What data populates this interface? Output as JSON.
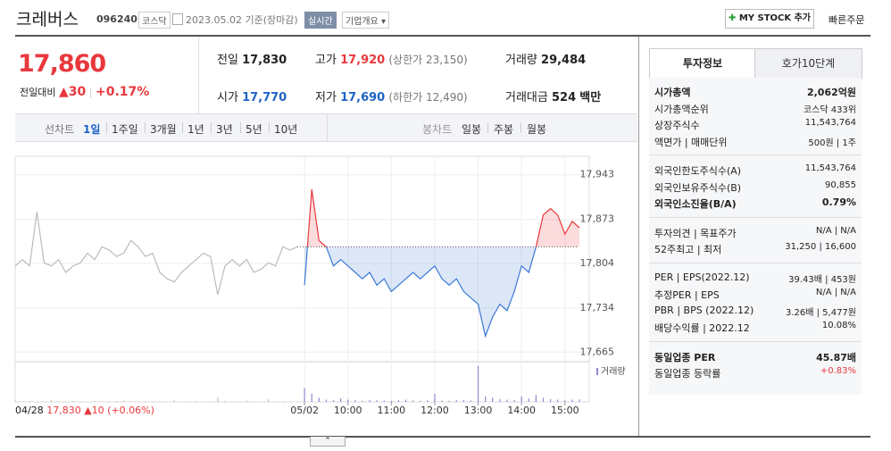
{
  "header": {
    "name": "크레버스",
    "code": "096240",
    "market": "코스닥",
    "date": "2023.05.02 기준(장마감)",
    "realtime": "실시간",
    "company_info": "기업개요",
    "mystock": "MY STOCK 추가",
    "quick_order": "빠른주문"
  },
  "price": {
    "current": "17,860",
    "change_label": "전일대비",
    "change": "30",
    "change_pct": "+0.17%"
  },
  "summary": {
    "prev_label": "전일",
    "prev": "17,830",
    "high_label": "고가",
    "high": "17,920",
    "upper_limit": "(상한가 23,150)",
    "volume_label": "거래량",
    "volume": "29,484",
    "open_label": "시가",
    "open": "17,770",
    "low_label": "저가",
    "low": "17,690",
    "lower_limit": "(하한가 12,490)",
    "amount_label": "거래대금",
    "amount": "524",
    "amount_unit": "백만"
  },
  "chart_tabs": {
    "line_label": "선차트",
    "line": [
      "1일",
      "1주일",
      "3개월",
      "1년",
      "3년",
      "5년",
      "10년"
    ],
    "candle_label": "봉차트",
    "candle": [
      "일봉",
      "주봉",
      "월봉"
    ]
  },
  "chart_data": {
    "type": "line",
    "baseline": 17830,
    "grid": true,
    "ylim": [
      17650,
      17958
    ],
    "yticks": [
      {
        "value": 17665,
        "label": "17,665"
      },
      {
        "value": 17734,
        "label": "17,734"
      },
      {
        "value": 17804,
        "label": "17,804"
      },
      {
        "value": 17873,
        "label": "17,873"
      },
      {
        "value": 17943,
        "label": "17,943"
      }
    ],
    "categories": [
      null,
      null,
      null,
      null,
      null,
      null,
      null,
      null,
      null,
      null,
      null,
      null,
      null,
      null,
      null,
      null,
      null,
      null,
      null,
      null,
      null,
      null,
      null,
      null,
      null,
      null,
      null,
      null,
      null,
      null,
      null,
      null,
      null,
      null,
      null,
      null,
      null,
      null,
      null,
      null,
      "05/02",
      null,
      null,
      null,
      null,
      null,
      "10:00",
      null,
      null,
      null,
      null,
      null,
      "11:00",
      null,
      null,
      null,
      null,
      null,
      "12:00",
      null,
      null,
      null,
      null,
      null,
      "13:00",
      null,
      null,
      null,
      null,
      null,
      "14:00",
      null,
      null,
      null,
      null,
      null,
      "15:00",
      null,
      null
    ],
    "series": [
      {
        "color": "#bbbbbb",
        "values": [
          17800,
          17810,
          17800,
          17885,
          17805,
          17800,
          17810,
          17790,
          17800,
          17805,
          17820,
          17810,
          17830,
          17825,
          17815,
          17820,
          17840,
          17830,
          17815,
          17820,
          17790,
          17780,
          17775,
          17790,
          17800,
          17810,
          17820,
          17815,
          17755,
          17800,
          17810,
          17800,
          17810,
          17790,
          17795,
          17805,
          17800,
          17830,
          17825,
          17830,
          null,
          null,
          null,
          null,
          null,
          null,
          null,
          null,
          null,
          null,
          null,
          null,
          null,
          null,
          null,
          null,
          null,
          null,
          null,
          null,
          null,
          null,
          null,
          null,
          null,
          null,
          null,
          null,
          null,
          null,
          null,
          null,
          null,
          null,
          null,
          null,
          null,
          null,
          null
        ]
      },
      {
        "color": "#3a78d5",
        "up_color": "#e8383d",
        "values": [
          null,
          null,
          null,
          null,
          null,
          null,
          null,
          null,
          null,
          null,
          null,
          null,
          null,
          null,
          null,
          null,
          null,
          null,
          null,
          null,
          null,
          null,
          null,
          null,
          null,
          null,
          null,
          null,
          null,
          null,
          null,
          null,
          null,
          null,
          null,
          null,
          null,
          null,
          null,
          null,
          17770,
          17920,
          17840,
          17830,
          17800,
          17810,
          17800,
          17790,
          17780,
          17790,
          17770,
          17780,
          17760,
          17770,
          17780,
          17790,
          17780,
          17790,
          17800,
          17780,
          17770,
          17780,
          17760,
          17750,
          17740,
          17690,
          17720,
          17740,
          17730,
          17760,
          17800,
          17790,
          17830,
          17880,
          17890,
          17880,
          17850,
          17870,
          17860
        ]
      }
    ],
    "volume": {
      "name": "거래량",
      "color": "#9187cf",
      "values": [
        40,
        10,
        30,
        20,
        10,
        60,
        20,
        10,
        30,
        20,
        10,
        40,
        20,
        10,
        30,
        50,
        20,
        10,
        30,
        20,
        10,
        20,
        60,
        10,
        20,
        30,
        10,
        20,
        150,
        30,
        20,
        10,
        40,
        20,
        10,
        90,
        20,
        30,
        10,
        20,
        500,
        300,
        150,
        80,
        60,
        120,
        80,
        60,
        40,
        70,
        60,
        50,
        40,
        60,
        80,
        50,
        40,
        60,
        300,
        50,
        40,
        70,
        60,
        50,
        1300,
        200,
        150,
        100,
        80,
        60,
        200,
        120,
        250,
        150,
        100,
        80,
        60,
        80,
        90
      ]
    }
  },
  "chart_footer": {
    "date": "04/28",
    "price": "17,830",
    "change": "10",
    "change_pct": "(+0.06%)"
  },
  "side": {
    "tabs": [
      "투자정보",
      "호가10단계"
    ],
    "sections": [
      [
        {
          "label": "시가총액",
          "value": "2,062억원",
          "bold": true
        },
        {
          "label": "시가총액순위",
          "value": "코스닥 433위"
        },
        {
          "label": "상장주식수",
          "value": "11,543,764"
        },
        {
          "label": "액면가 | 매매단위",
          "value": "500원 | 1주"
        }
      ],
      [
        {
          "label": "외국인한도주식수(A)",
          "value": "11,543,764"
        },
        {
          "label": "외국인보유주식수(B)",
          "value": "90,855"
        },
        {
          "label": "외국인소진율(B/A)",
          "value": "0.79%",
          "bold": true
        }
      ],
      [
        {
          "label": "투자의견 | 목표주가",
          "value": "N/A | N/A"
        },
        {
          "label": "52주최고 | 최저",
          "value": "31,250 | 16,600"
        }
      ],
      [
        {
          "label": "PER | EPS(2022.12)",
          "value": "39.43배 | 453원"
        },
        {
          "label": "추정PER | EPS",
          "value": "N/A | N/A"
        },
        {
          "label": "PBR | BPS (2022.12)",
          "value": "3.26배 | 5,477원"
        },
        {
          "label": "배당수익률 | 2022.12",
          "value": "10.08%"
        }
      ],
      [
        {
          "label": "동일업종 PER",
          "value": "45.87배",
          "bold": true
        },
        {
          "label": "동일업종 등락률",
          "value": "+0.83%",
          "color": "#e8383d"
        }
      ]
    ]
  }
}
